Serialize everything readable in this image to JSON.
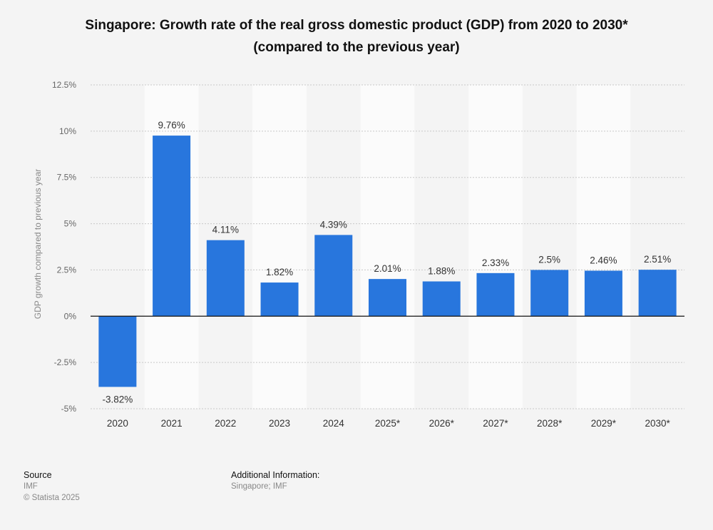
{
  "chart_data": {
    "type": "bar",
    "title": "Singapore: Growth rate of the real gross domestic product (GDP) from 2020 to 2030*",
    "subtitle": "(compared to the previous year)",
    "xlabel": "",
    "ylabel": "GDP growth compared to previous year",
    "categories": [
      "2020",
      "2021",
      "2022",
      "2023",
      "2024",
      "2025*",
      "2026*",
      "2027*",
      "2028*",
      "2029*",
      "2030*"
    ],
    "values": [
      -3.82,
      9.76,
      4.11,
      1.82,
      4.39,
      2.01,
      1.88,
      2.33,
      2.5,
      2.46,
      2.51
    ],
    "value_labels": [
      "-3.82%",
      "9.76%",
      "4.11%",
      "1.82%",
      "4.39%",
      "2.01%",
      "1.88%",
      "2.33%",
      "2.5%",
      "2.46%",
      "2.51%"
    ],
    "ylim": [
      -5,
      12.5
    ],
    "yticks": [
      12.5,
      10,
      7.5,
      5,
      2.5,
      0,
      -2.5,
      -5
    ],
    "ytick_labels": [
      "12.5%",
      "10%",
      "7.5%",
      "5%",
      "2.5%",
      "0%",
      "-2.5%",
      "-5%"
    ],
    "grid": true,
    "series_color": "#2876dd"
  },
  "footer": {
    "source_heading": "Source",
    "source_name": "IMF",
    "copyright": "© Statista 2025",
    "additional_heading": "Additional Information:",
    "additional_text": "Singapore; IMF"
  }
}
